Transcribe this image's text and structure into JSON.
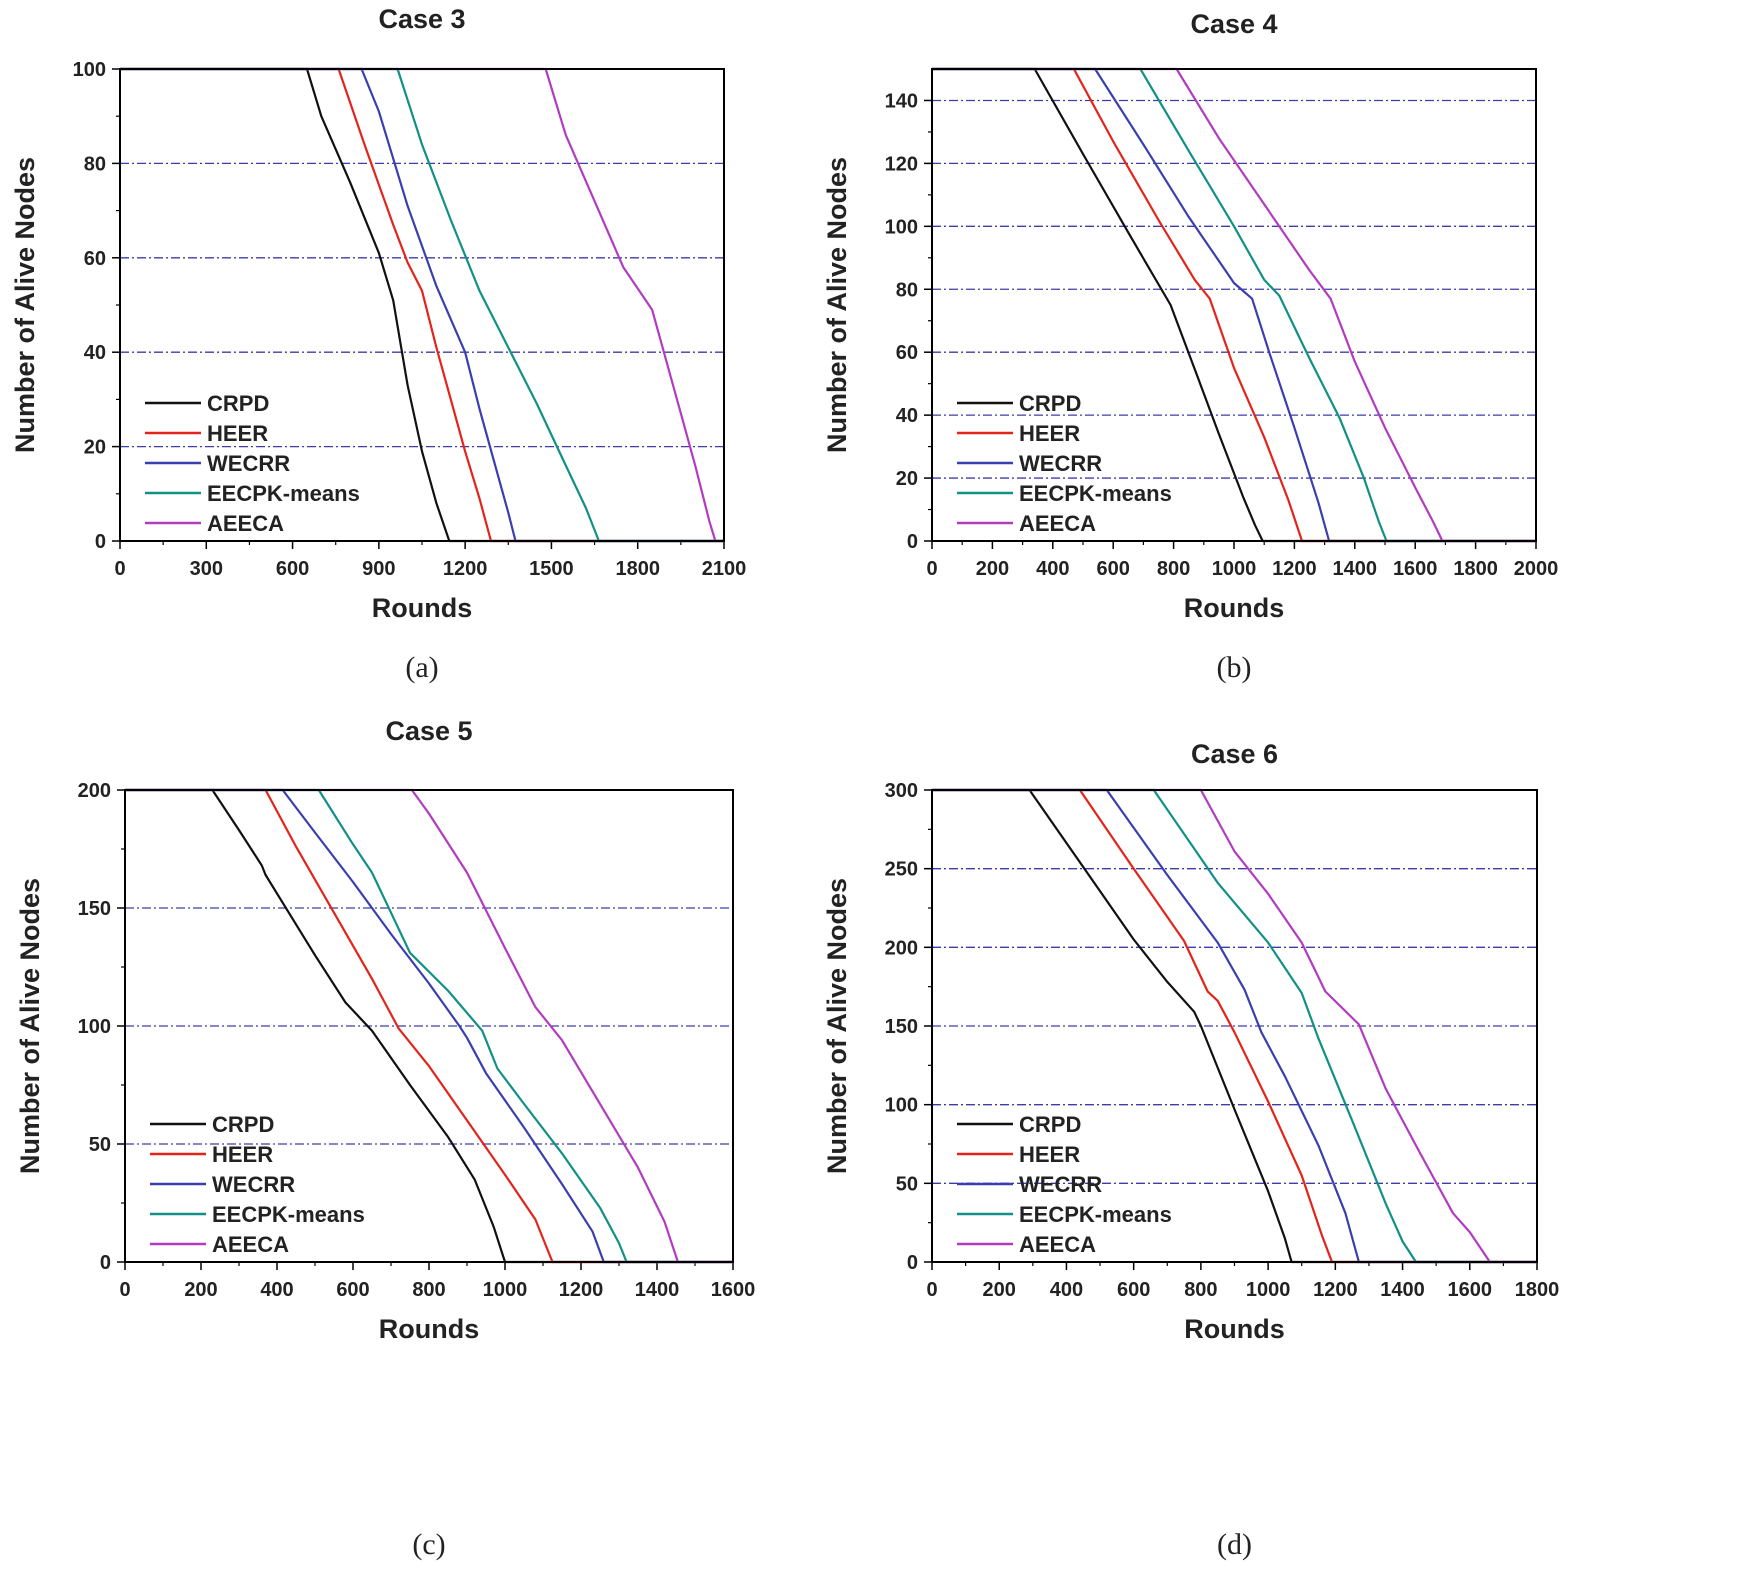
{
  "chart_data": [
    {
      "panel": "a",
      "type": "line",
      "title": "Case 3",
      "caption": "(a)",
      "xlabel": "Rounds",
      "ylabel": "Number of Alive Nodes",
      "xlim": [
        0,
        2100
      ],
      "ylim": [
        0,
        100
      ],
      "xticks": [
        0,
        300,
        600,
        900,
        1200,
        1500,
        1800,
        2100
      ],
      "yticks": [
        0,
        20,
        40,
        60,
        80,
        100
      ],
      "grid_y": [
        20,
        40,
        60,
        80
      ],
      "legend_position": "bottom-left",
      "series": [
        {
          "name": "CRPD",
          "color": "#111111",
          "x": [
            0,
            650,
            700,
            800,
            900,
            950,
            1000,
            1050,
            1100,
            1145,
            2100
          ],
          "y": [
            100,
            100,
            90,
            76,
            61,
            51,
            33,
            19,
            8,
            0,
            0
          ]
        },
        {
          "name": "HEER",
          "color": "#e3241b",
          "x": [
            0,
            760,
            850,
            950,
            1000,
            1050,
            1100,
            1150,
            1200,
            1250,
            1290,
            2100
          ],
          "y": [
            100,
            100,
            84,
            67,
            59,
            53,
            41,
            30,
            19,
            9,
            0,
            0
          ]
        },
        {
          "name": "WECRR",
          "color": "#3b3fae",
          "x": [
            0,
            840,
            900,
            1000,
            1100,
            1200,
            1250,
            1300,
            1350,
            1375,
            2100
          ],
          "y": [
            100,
            100,
            91,
            71,
            54,
            40,
            28,
            17,
            6,
            0,
            0
          ]
        },
        {
          "name": "EECPK-means",
          "color": "#119185",
          "x": [
            0,
            965,
            1050,
            1150,
            1250,
            1350,
            1450,
            1550,
            1620,
            1665,
            2100
          ],
          "y": [
            100,
            100,
            84,
            68,
            53,
            41,
            29,
            16,
            7,
            0,
            0
          ]
        },
        {
          "name": "AEECA",
          "color": "#b23cc0",
          "x": [
            0,
            1480,
            1550,
            1650,
            1750,
            1850,
            1900,
            1950,
            2000,
            2050,
            2070,
            2100
          ],
          "y": [
            100,
            100,
            86,
            72,
            58,
            49,
            38,
            27,
            16,
            4,
            0,
            0
          ]
        }
      ]
    },
    {
      "panel": "b",
      "type": "line",
      "title": "Case 4",
      "caption": "(b)",
      "xlabel": "Rounds",
      "ylabel": "Number of Alive Nodes",
      "xlim": [
        0,
        2000
      ],
      "ylim": [
        0,
        150
      ],
      "xticks": [
        0,
        200,
        400,
        600,
        800,
        1000,
        1200,
        1400,
        1600,
        1800,
        2000
      ],
      "yticks": [
        0,
        20,
        40,
        60,
        80,
        100,
        120,
        140
      ],
      "grid_y": [
        20,
        40,
        60,
        80,
        100,
        120,
        140
      ],
      "legend_position": "bottom-left",
      "series": [
        {
          "name": "CRPD",
          "color": "#111111",
          "x": [
            0,
            340,
            500,
            650,
            790,
            880,
            950,
            1030,
            1070,
            1095,
            2000
          ],
          "y": [
            150,
            150,
            123,
            98,
            75,
            52,
            34,
            14,
            5,
            0,
            0
          ]
        },
        {
          "name": "HEER",
          "color": "#e3241b",
          "x": [
            0,
            470,
            600,
            750,
            870,
            920,
            1000,
            1100,
            1180,
            1225,
            2000
          ],
          "y": [
            150,
            150,
            127,
            102,
            83,
            77,
            55,
            33,
            13,
            0,
            0
          ]
        },
        {
          "name": "WECRR",
          "color": "#3b3fae",
          "x": [
            0,
            540,
            700,
            850,
            1000,
            1060,
            1120,
            1200,
            1280,
            1315,
            2000
          ],
          "y": [
            150,
            150,
            126,
            103,
            82,
            77,
            59,
            36,
            12,
            0,
            0
          ]
        },
        {
          "name": "EECPK-means",
          "color": "#119185",
          "x": [
            0,
            690,
            850,
            1000,
            1100,
            1150,
            1250,
            1350,
            1430,
            1480,
            1505,
            2000
          ],
          "y": [
            150,
            150,
            124,
            100,
            83,
            78,
            58,
            39,
            20,
            6,
            0,
            0
          ]
        },
        {
          "name": "AEECA",
          "color": "#b23cc0",
          "x": [
            0,
            810,
            950,
            1100,
            1250,
            1320,
            1400,
            1500,
            1600,
            1660,
            1690,
            2000
          ],
          "y": [
            150,
            150,
            128,
            107,
            86,
            77,
            57,
            36,
            17,
            6,
            0,
            0
          ]
        }
      ]
    },
    {
      "panel": "c",
      "type": "line",
      "title": "Case 5",
      "caption": "(c)",
      "xlabel": "Rounds",
      "ylabel": "Number of Alive Nodes",
      "xlim": [
        0,
        1600
      ],
      "ylim": [
        0,
        200
      ],
      "xticks": [
        0,
        200,
        400,
        600,
        800,
        1000,
        1200,
        1400,
        1600
      ],
      "yticks": [
        0,
        50,
        100,
        150,
        200
      ],
      "grid_y": [
        50,
        100,
        150
      ],
      "legend_position": "bottom-left",
      "series": [
        {
          "name": "CRPD",
          "color": "#111111",
          "x": [
            0,
            230,
            300,
            360,
            370,
            500,
            580,
            650,
            750,
            850,
            920,
            970,
            1000,
            1600
          ],
          "y": [
            200,
            200,
            183,
            168,
            164,
            130,
            110,
            98,
            75,
            53,
            35,
            15,
            0,
            0
          ]
        },
        {
          "name": "HEER",
          "color": "#e3241b",
          "x": [
            0,
            370,
            450,
            550,
            650,
            720,
            800,
            900,
            1000,
            1080,
            1125,
            1600
          ],
          "y": [
            200,
            200,
            176,
            148,
            120,
            99,
            83,
            60,
            37,
            18,
            0,
            0
          ]
        },
        {
          "name": "WECRR",
          "color": "#3b3fae",
          "x": [
            0,
            415,
            500,
            600,
            700,
            800,
            880,
            900,
            950,
            1050,
            1150,
            1230,
            1260,
            1600
          ],
          "y": [
            200,
            200,
            182,
            161,
            139,
            118,
            100,
            95,
            80,
            57,
            33,
            13,
            0,
            0
          ]
        },
        {
          "name": "EECPK-means",
          "color": "#119185",
          "x": [
            0,
            510,
            600,
            650,
            750,
            850,
            940,
            980,
            1050,
            1150,
            1250,
            1300,
            1320,
            1600
          ],
          "y": [
            200,
            200,
            177,
            165,
            131,
            115,
            98,
            82,
            67,
            46,
            23,
            8,
            0,
            0
          ]
        },
        {
          "name": "AEECA",
          "color": "#b23cc0",
          "x": [
            0,
            755,
            800,
            900,
            1000,
            1080,
            1150,
            1250,
            1350,
            1420,
            1455,
            1600
          ],
          "y": [
            200,
            200,
            190,
            165,
            133,
            108,
            94,
            67,
            40,
            17,
            0,
            0
          ]
        }
      ]
    },
    {
      "panel": "d",
      "type": "line",
      "title": "Case 6",
      "caption": "(d)",
      "xlabel": "Rounds",
      "ylabel": "Number of Alive Nodes",
      "xlim": [
        0,
        1800
      ],
      "ylim": [
        0,
        300
      ],
      "xticks": [
        0,
        200,
        400,
        600,
        800,
        1000,
        1200,
        1400,
        1600,
        1800
      ],
      "yticks": [
        0,
        50,
        100,
        150,
        200,
        250,
        300
      ],
      "grid_y": [
        50,
        100,
        150,
        200,
        250
      ],
      "legend_position": "bottom-left",
      "series": [
        {
          "name": "CRPD",
          "color": "#111111",
          "x": [
            0,
            290,
            450,
            600,
            700,
            780,
            800,
            900,
            1000,
            1050,
            1070,
            1800
          ],
          "y": [
            300,
            300,
            251,
            205,
            178,
            159,
            150,
            97,
            45,
            15,
            0,
            0
          ]
        },
        {
          "name": "HEER",
          "color": "#e3241b",
          "x": [
            0,
            440,
            600,
            750,
            820,
            850,
            900,
            1000,
            1100,
            1160,
            1190,
            1800
          ],
          "y": [
            300,
            300,
            250,
            204,
            172,
            166,
            146,
            102,
            55,
            17,
            0,
            0
          ]
        },
        {
          "name": "WECRR",
          "color": "#3b3fae",
          "x": [
            0,
            520,
            700,
            850,
            930,
            980,
            1050,
            1150,
            1230,
            1270,
            1800
          ],
          "y": [
            300,
            300,
            246,
            203,
            173,
            146,
            118,
            74,
            31,
            0,
            0
          ]
        },
        {
          "name": "EECPK-means",
          "color": "#119185",
          "x": [
            0,
            660,
            850,
            1000,
            1100,
            1150,
            1250,
            1350,
            1400,
            1440,
            1800
          ],
          "y": [
            300,
            300,
            241,
            203,
            171,
            142,
            90,
            37,
            13,
            0,
            0
          ]
        },
        {
          "name": "AEECA",
          "color": "#b23cc0",
          "x": [
            0,
            800,
            900,
            1000,
            1100,
            1170,
            1270,
            1350,
            1450,
            1550,
            1600,
            1660,
            1800
          ],
          "y": [
            300,
            300,
            261,
            234,
            203,
            172,
            151,
            110,
            70,
            31,
            19,
            0,
            0
          ]
        }
      ]
    }
  ]
}
